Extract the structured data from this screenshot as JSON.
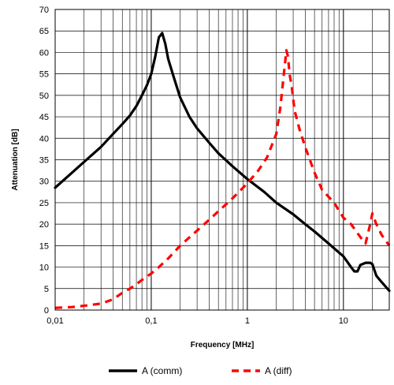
{
  "chart_data": {
    "type": "line",
    "xlabel": "Frequency [MHz]",
    "ylabel": "Attenuation [dB]",
    "x_scale": "log",
    "xlim": [
      0.01,
      30
    ],
    "ylim": [
      0,
      70
    ],
    "grid": true,
    "legend_position": "bottom",
    "x_ticks": [
      {
        "value": 0.01,
        "label": "0,01"
      },
      {
        "value": 0.1,
        "label": "0,1"
      },
      {
        "value": 1,
        "label": "1"
      },
      {
        "value": 10,
        "label": "10"
      }
    ],
    "y_ticks": [
      0,
      5,
      10,
      15,
      20,
      25,
      30,
      35,
      40,
      45,
      50,
      55,
      60,
      65,
      70
    ],
    "series": [
      {
        "name": "A (comm)",
        "color": "#000000",
        "style": "solid",
        "x": [
          0.01,
          0.015,
          0.02,
          0.03,
          0.04,
          0.05,
          0.06,
          0.07,
          0.08,
          0.09,
          0.1,
          0.11,
          0.12,
          0.13,
          0.14,
          0.15,
          0.17,
          0.2,
          0.25,
          0.3,
          0.4,
          0.5,
          0.7,
          1,
          1.5,
          2,
          3,
          4,
          5,
          7,
          10,
          12,
          13,
          14,
          15,
          17,
          19,
          20,
          22,
          25,
          30
        ],
        "y": [
          28.5,
          32,
          34.5,
          38,
          41,
          43.3,
          45.3,
          47.5,
          50,
          52.3,
          55,
          59,
          63.5,
          64.5,
          62,
          58.5,
          54.5,
          49.5,
          45,
          42.3,
          39,
          36.5,
          33.5,
          30.5,
          27.5,
          25,
          22.3,
          20,
          18.3,
          15.5,
          12.5,
          10,
          9,
          9,
          10.5,
          11,
          11,
          10.7,
          8,
          6.5,
          4.5
        ]
      },
      {
        "name": "A (diff)",
        "color": "#ff0000",
        "style": "dashed",
        "x": [
          0.01,
          0.015,
          0.02,
          0.03,
          0.04,
          0.05,
          0.06,
          0.07,
          0.08,
          0.1,
          0.12,
          0.15,
          0.2,
          0.3,
          0.4,
          0.5,
          0.7,
          1,
          1.3,
          1.6,
          2,
          2.2,
          2.4,
          2.55,
          2.65,
          2.75,
          2.9,
          3.1,
          3.5,
          4,
          5,
          6,
          8,
          10,
          12,
          15,
          17,
          19,
          20,
          22,
          25,
          30
        ],
        "y": [
          0.5,
          0.7,
          1,
          1.5,
          2.5,
          4,
          5,
          6,
          7,
          8.5,
          10,
          12,
          15,
          18.5,
          21,
          23,
          26,
          29.5,
          32.5,
          35.5,
          41,
          47,
          55,
          60.5,
          59,
          55,
          52,
          46.5,
          42,
          38,
          32,
          28,
          25,
          21.5,
          20,
          17,
          15.5,
          20,
          22.5,
          20,
          17.5,
          15
        ]
      }
    ]
  }
}
